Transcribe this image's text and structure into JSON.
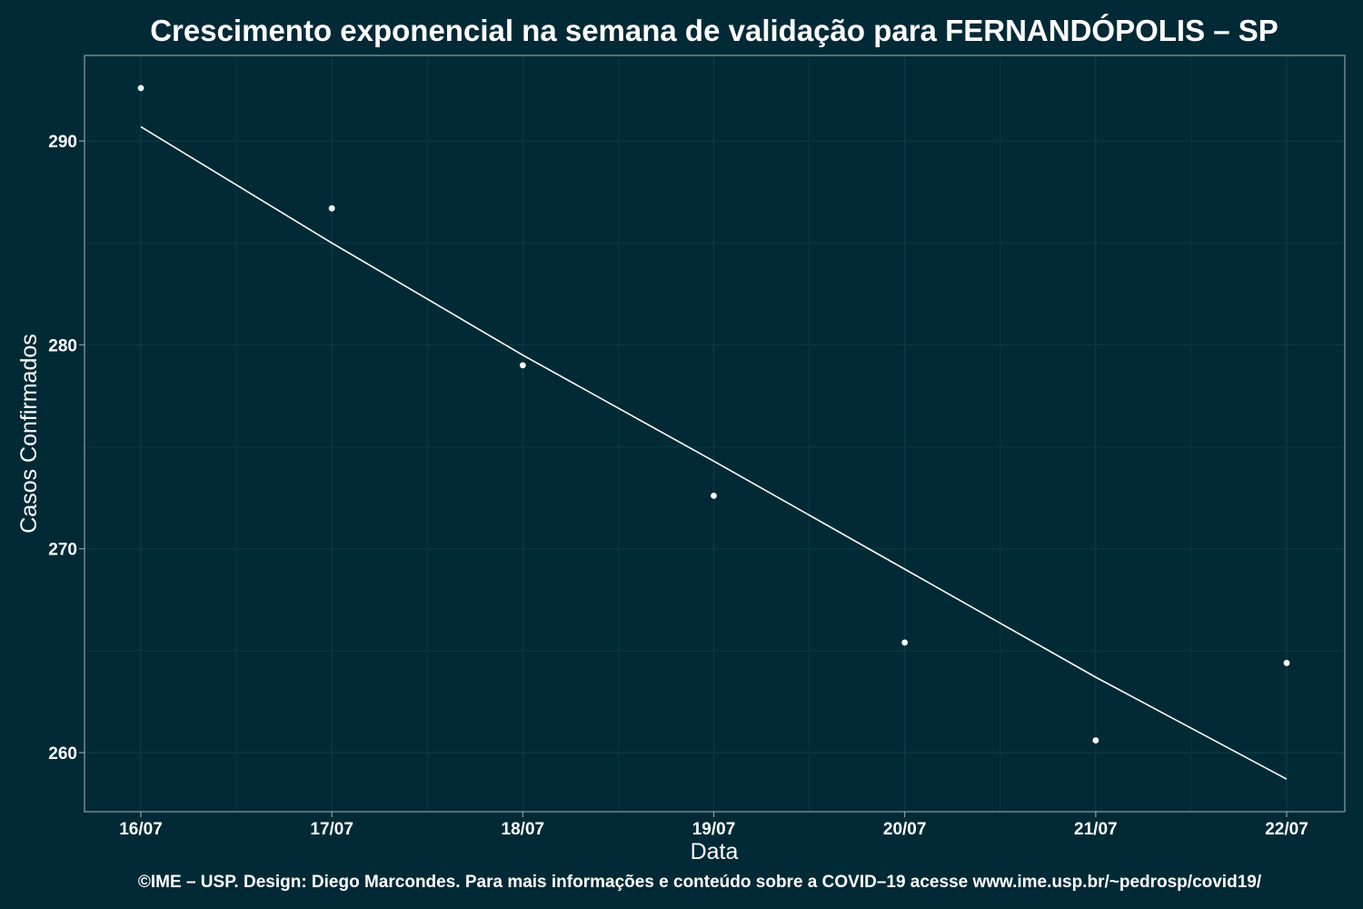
{
  "chart_data": {
    "type": "scatter",
    "title": "Crescimento exponencial na semana de validação para FERNANDÓPOLIS – SP",
    "xlabel": "Data",
    "ylabel": "Casos Confirmados",
    "caption": "©IME – USP. Design: Diego Marcondes. Para mais informações e conteúdo sobre a COVID–19 acesse www.ime.usp.br/~pedrosp/covid19/",
    "x": [
      "16/07",
      "17/07",
      "18/07",
      "19/07",
      "20/07",
      "21/07",
      "22/07"
    ],
    "series": [
      {
        "type": "scatter",
        "values": [
          292.6,
          286.7,
          279.0,
          272.6,
          265.4,
          260.6,
          264.4
        ]
      },
      {
        "type": "line",
        "values": [
          290.7,
          285.0,
          279.5,
          274.3,
          269.0,
          263.7,
          258.7
        ]
      }
    ],
    "yticks": [
      260,
      270,
      280,
      290
    ],
    "ylim": [
      257.1,
      294.2
    ],
    "grid": true,
    "legend": "none",
    "colors": {
      "background": "#022a36",
      "grid": "#0c3a45",
      "frame": "#8a9ea3",
      "points": "#ffffff",
      "line": "#ffffff"
    }
  }
}
